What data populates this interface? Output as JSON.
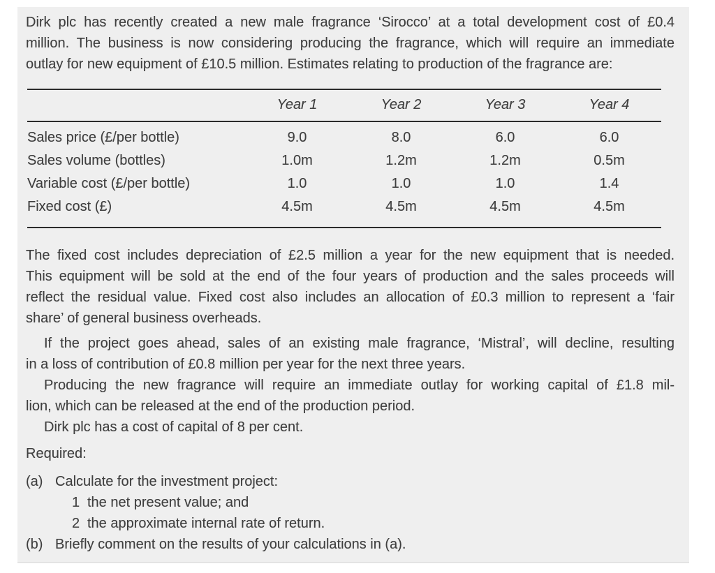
{
  "colors": {
    "panel_bg": "#efefef",
    "text": "#3f3f3f",
    "rule": "#2b2b2b"
  },
  "panel": {
    "paragraph1": {
      "lines": [
        "Dirk plc has recently created a new male fragrance ‘Sirocco’ at a total development cost of £0.4",
        "million. The business is now considering producing the fragrance, which will require an immediate",
        "outlay for new equipment of £10.5 million. Estimates relating to production of the fragrance are:"
      ]
    },
    "table": {
      "headers": [
        "Year 1",
        "Year 2",
        "Year 3",
        "Year 4"
      ],
      "rows": [
        {
          "label": "Sales price (£/per bottle)",
          "values": [
            "9.0",
            "8.0",
            "6.0",
            "6.0"
          ]
        },
        {
          "label": "Sales volume (bottles)",
          "values": [
            "1.0m",
            "1.2m",
            "1.2m",
            "0.5m"
          ]
        },
        {
          "label": "Variable cost (£/per bottle)",
          "values": [
            "1.0",
            "1.0",
            "1.0",
            "1.4"
          ]
        },
        {
          "label": "Fixed cost (£)",
          "values": [
            "4.5m",
            "4.5m",
            "4.5m",
            "4.5m"
          ]
        }
      ]
    },
    "paragraph2": {
      "lines": [
        "The fixed cost includes depreciation of £2.5 million a year for the new equipment that is needed.",
        "This equipment will be sold at the end of the four years of production and the sales proceeds will",
        "reflect the residual value. Fixed cost also includes an allocation of £0.3 million to represent a ‘fair",
        "share’ of general business overheads."
      ]
    },
    "paragraph3": {
      "lines": [
        "If the project goes ahead, sales of an existing male fragrance, ‘Mistral’, will decline, resulting",
        "in a loss of contribution of £0.8 million per year for the next three years."
      ]
    },
    "paragraph4": {
      "lines": [
        "Producing the new fragrance will require an immediate outlay for working capital of £1.8 mil-",
        "lion, which can be released at the end of the production period."
      ]
    },
    "paragraph5": {
      "lines": [
        "Dirk plc has a cost of capital of 8 per cent."
      ]
    },
    "required": {
      "heading": "Required:",
      "items": [
        {
          "marker": "(a)",
          "text": "Calculate for the investment project:",
          "subitems": [
            {
              "marker": "1",
              "text": "the net present value; and"
            },
            {
              "marker": "2",
              "text": "the approximate internal rate of return."
            }
          ]
        },
        {
          "marker": "(b)",
          "text": "Briefly comment on the results of your calculations in (a)."
        }
      ]
    }
  }
}
